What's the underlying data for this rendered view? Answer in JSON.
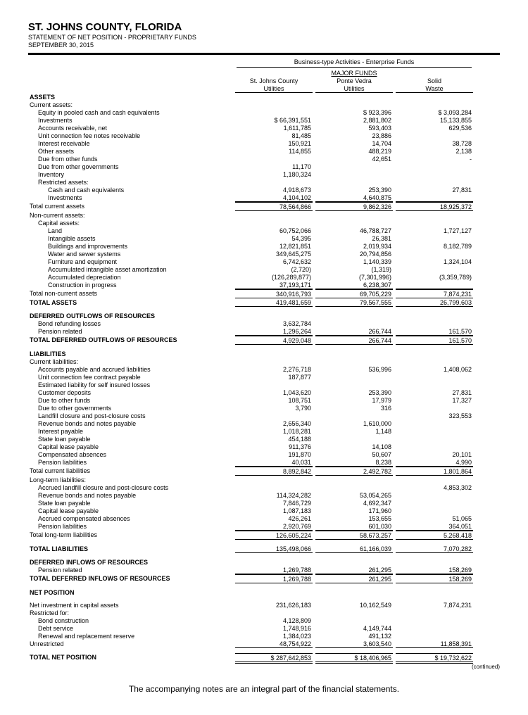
{
  "header": {
    "title": "ST. JOHNS COUNTY, FLORIDA",
    "line1": "STATEMENT OF NET POSITION - PROPRIETARY FUNDS",
    "line2": "SEPTEMBER 30, 2015"
  },
  "cols": {
    "super": "Business-type Activities - Enterprise Funds",
    "major": "MAJOR FUNDS",
    "c1a": "St. Johns County",
    "c1b": "Utilities",
    "c2a": "Ponte Vedra",
    "c2b": "Utilities",
    "c3a": "Solid",
    "c3b": "Waste"
  },
  "rows": [
    {
      "t": "sec",
      "l": "ASSETS"
    },
    {
      "t": "r",
      "l": "Current assets:",
      "i": 0
    },
    {
      "t": "r",
      "l": "Equity in pooled cash and cash equivalents",
      "i": 1,
      "c1": "",
      "c2": "$        923,396",
      "c3": "$      3,093,284"
    },
    {
      "t": "r",
      "l": "Investments",
      "i": 1,
      "c1": "$     66,391,551",
      "c2": "2,881,802",
      "c3": "15,133,855"
    },
    {
      "t": "r",
      "l": "Accounts receivable, net",
      "i": 1,
      "c1": "1,611,785",
      "c2": "593,403",
      "c3": "629,536"
    },
    {
      "t": "r",
      "l": "Unit connection fee notes receivable",
      "i": 1,
      "c1": "81,485",
      "c2": "23,886",
      "c3": ""
    },
    {
      "t": "r",
      "l": "Interest receivable",
      "i": 1,
      "c1": "150,921",
      "c2": "14,704",
      "c3": "38,728"
    },
    {
      "t": "r",
      "l": "Other assets",
      "i": 1,
      "c1": "114,855",
      "c2": "488,219",
      "c3": "2,138"
    },
    {
      "t": "r",
      "l": "Due from other funds",
      "i": 1,
      "c1": "",
      "c2": "42,651",
      "c3": "-"
    },
    {
      "t": "r",
      "l": "Due from other governments",
      "i": 1,
      "c1": "11,170",
      "c2": "",
      "c3": ""
    },
    {
      "t": "r",
      "l": "Inventory",
      "i": 1,
      "c1": "1,180,324",
      "c2": "",
      "c3": ""
    },
    {
      "t": "r",
      "l": "Restricted assets:",
      "i": 1
    },
    {
      "t": "r",
      "l": "Cash and cash equivalents",
      "i": 2,
      "c1": "4,918,673",
      "c2": "253,390",
      "c3": "27,831"
    },
    {
      "t": "r",
      "l": "Investments",
      "i": 2,
      "c1": "4,104,102",
      "c2": "4,640,875",
      "c3": "",
      "u": true
    },
    {
      "t": "r",
      "l": "Total current assets",
      "i": 0,
      "c1": "78,564,866",
      "c2": "9,862,326",
      "c3": "18,925,372",
      "bt": true,
      "bb": true
    },
    {
      "t": "r",
      "l": "Non-current assets:",
      "i": 0
    },
    {
      "t": "r",
      "l": "Capital assets:",
      "i": 1
    },
    {
      "t": "r",
      "l": "Land",
      "i": 2,
      "c1": "60,752,066",
      "c2": "46,788,727",
      "c3": "1,727,127"
    },
    {
      "t": "r",
      "l": "Intangible assets",
      "i": 2,
      "c1": "54,395",
      "c2": "26,381",
      "c3": ""
    },
    {
      "t": "r",
      "l": "Buildings and improvements",
      "i": 2,
      "c1": "12,821,851",
      "c2": "2,019,934",
      "c3": "8,182,789"
    },
    {
      "t": "r",
      "l": "Water and sewer systems",
      "i": 2,
      "c1": "349,645,275",
      "c2": "20,794,856",
      "c3": ""
    },
    {
      "t": "r",
      "l": "Furniture and equipment",
      "i": 2,
      "c1": "6,742,632",
      "c2": "1,140,339",
      "c3": "1,324,104"
    },
    {
      "t": "r",
      "l": "Accumulated intangible asset amortization",
      "i": 2,
      "c1": "(2,720)",
      "c2": "(1,319)",
      "c3": ""
    },
    {
      "t": "r",
      "l": "Accumulated depreciation",
      "i": 2,
      "c1": "(126,289,877)",
      "c2": "(7,301,996)",
      "c3": "(3,359,789)"
    },
    {
      "t": "r",
      "l": "Construction in progress",
      "i": 2,
      "c1": "37,193,171",
      "c2": "6,238,307",
      "c3": "",
      "u": true
    },
    {
      "t": "r",
      "l": "Total non-current assets",
      "i": 0,
      "c1": "340,916,793",
      "c2": "69,705,229",
      "c3": "7,874,231",
      "bt": true,
      "bb": true
    },
    {
      "t": "r",
      "l": "TOTAL ASSETS",
      "i": 0,
      "b": true,
      "c1": "419,481,659",
      "c2": "79,567,555",
      "c3": "26,799,603",
      "bb": true
    },
    {
      "t": "sp"
    },
    {
      "t": "sec",
      "l": "DEFERRED OUTFLOWS OF RESOURCES"
    },
    {
      "t": "r",
      "l": "Bond refunding losses",
      "i": 1,
      "c1": "3,632,784",
      "c2": "",
      "c3": ""
    },
    {
      "t": "r",
      "l": "Pension related",
      "i": 1,
      "c1": "1,296,264",
      "c2": "266,744",
      "c3": "161,570",
      "u": true
    },
    {
      "t": "r",
      "l": "TOTAL DEFERRED OUTFLOWS OF RESOURCES",
      "i": 0,
      "b": true,
      "c1": "4,929,048",
      "c2": "266,744",
      "c3": "161,570",
      "bt": true,
      "bb": true
    },
    {
      "t": "sp"
    },
    {
      "t": "sec",
      "l": "LIABILITIES"
    },
    {
      "t": "r",
      "l": "Current liabilities:",
      "i": 0
    },
    {
      "t": "r",
      "l": "Accounts payable and accrued liabilities",
      "i": 1,
      "c1": "2,276,718",
      "c2": "536,996",
      "c3": "1,408,062"
    },
    {
      "t": "r",
      "l": "Unit connection fee contract payable",
      "i": 1,
      "c1": "187,877",
      "c2": "",
      "c3": ""
    },
    {
      "t": "r",
      "l": "Estimated liability for self insured losses",
      "i": 1,
      "c1": "",
      "c2": "",
      "c3": ""
    },
    {
      "t": "r",
      "l": "Customer deposits",
      "i": 1,
      "c1": "1,043,620",
      "c2": "253,390",
      "c3": "27,831"
    },
    {
      "t": "r",
      "l": "Due to other funds",
      "i": 1,
      "c1": "108,751",
      "c2": "17,979",
      "c3": "17,327"
    },
    {
      "t": "r",
      "l": "Due to other governments",
      "i": 1,
      "c1": "3,790",
      "c2": "316",
      "c3": ""
    },
    {
      "t": "r",
      "l": "Landfill closure and post-closure costs",
      "i": 1,
      "c1": "",
      "c2": "",
      "c3": "323,553"
    },
    {
      "t": "r",
      "l": "Revenue bonds and notes payable",
      "i": 1,
      "c1": "2,656,340",
      "c2": "1,610,000",
      "c3": ""
    },
    {
      "t": "r",
      "l": "Interest payable",
      "i": 1,
      "c1": "1,018,281",
      "c2": "1,148",
      "c3": ""
    },
    {
      "t": "r",
      "l": "State loan payable",
      "i": 1,
      "c1": "454,188",
      "c2": "",
      "c3": ""
    },
    {
      "t": "r",
      "l": "Capital lease payable",
      "i": 1,
      "c1": "911,376",
      "c2": "14,108",
      "c3": ""
    },
    {
      "t": "r",
      "l": "Compensated absences",
      "i": 1,
      "c1": "191,870",
      "c2": "50,607",
      "c3": "20,101"
    },
    {
      "t": "r",
      "l": "Pension liabilities",
      "i": 1,
      "c1": "40,031",
      "c2": "8,238",
      "c3": "4,990",
      "u": true
    },
    {
      "t": "r",
      "l": "Total current liabilities",
      "i": 0,
      "c1": "8,892,842",
      "c2": "2,492,782",
      "c3": "1,801,864",
      "bt": true,
      "bb": true
    },
    {
      "t": "r",
      "l": "Long-term liabilities:",
      "i": 0
    },
    {
      "t": "r",
      "l": "Accrued landfill closure and post-closure costs",
      "i": 1,
      "c1": "",
      "c2": "",
      "c3": "4,853,302"
    },
    {
      "t": "r",
      "l": "Revenue bonds and notes payable",
      "i": 1,
      "c1": "114,324,282",
      "c2": "53,054,265",
      "c3": ""
    },
    {
      "t": "r",
      "l": "State loan payable",
      "i": 1,
      "c1": "7,846,729",
      "c2": "4,692,347",
      "c3": ""
    },
    {
      "t": "r",
      "l": "Capital lease payable",
      "i": 1,
      "c1": "1,087,183",
      "c2": "171,960",
      "c3": ""
    },
    {
      "t": "r",
      "l": "Accrued compensated absences",
      "i": 1,
      "c1": "426,261",
      "c2": "153,655",
      "c3": "51,065"
    },
    {
      "t": "r",
      "l": "Pension liabilities",
      "i": 1,
      "c1": "2,920,769",
      "c2": "601,030",
      "c3": "364,051",
      "u": true
    },
    {
      "t": "r",
      "l": "Total long-term liabilities",
      "i": 0,
      "c1": "126,605,224",
      "c2": "58,673,257",
      "c3": "5,268,418",
      "bt": true,
      "bb": true
    },
    {
      "t": "sp"
    },
    {
      "t": "r",
      "l": "TOTAL LIABILITIES",
      "i": 0,
      "b": true,
      "c1": "135,498,066",
      "c2": "61,166,039",
      "c3": "7,070,282",
      "bb": true
    },
    {
      "t": "sp"
    },
    {
      "t": "sec",
      "l": "DEFERRED INFLOWS OF RESOURCES"
    },
    {
      "t": "r",
      "l": "Pension related",
      "i": 1,
      "c1": "1,269,788",
      "c2": "261,295",
      "c3": "158,269",
      "u": true
    },
    {
      "t": "r",
      "l": "TOTAL DEFERRED INFLOWS OF RESOURCES",
      "i": 0,
      "b": true,
      "c1": "1,269,788",
      "c2": "261,295",
      "c3": "158,269",
      "bt": true,
      "bb": true
    },
    {
      "t": "sp"
    },
    {
      "t": "sec",
      "l": "NET POSITION"
    },
    {
      "t": "sp"
    },
    {
      "t": "r",
      "l": "Net investment in capital assets",
      "i": 0,
      "c1": "231,626,183",
      "c2": "10,162,549",
      "c3": "7,874,231"
    },
    {
      "t": "r",
      "l": "Restricted for:",
      "i": 0
    },
    {
      "t": "r",
      "l": "Bond construction",
      "i": 1,
      "c1": "4,128,809",
      "c2": "",
      "c3": ""
    },
    {
      "t": "r",
      "l": "Debt service",
      "i": 1,
      "c1": "1,748,916",
      "c2": "4,149,744",
      "c3": ""
    },
    {
      "t": "r",
      "l": "Renewal and replacement reserve",
      "i": 1,
      "c1": "1,384,023",
      "c2": "491,132",
      "c3": ""
    },
    {
      "t": "r",
      "l": "Unrestricted",
      "i": 0,
      "c1": "48,754,922",
      "c2": "3,603,540",
      "c3": "11,858,391",
      "u": true
    },
    {
      "t": "sp"
    },
    {
      "t": "r",
      "l": "TOTAL NET POSITION",
      "i": 0,
      "b": true,
      "c1": "$    287,642,853",
      "c2": "$     18,406,965",
      "c3": "$     19,732,622",
      "bt": true,
      "bd": true
    }
  ],
  "continued": "(continued)",
  "footer": "The accompanying notes are an integral part of the financial statements."
}
